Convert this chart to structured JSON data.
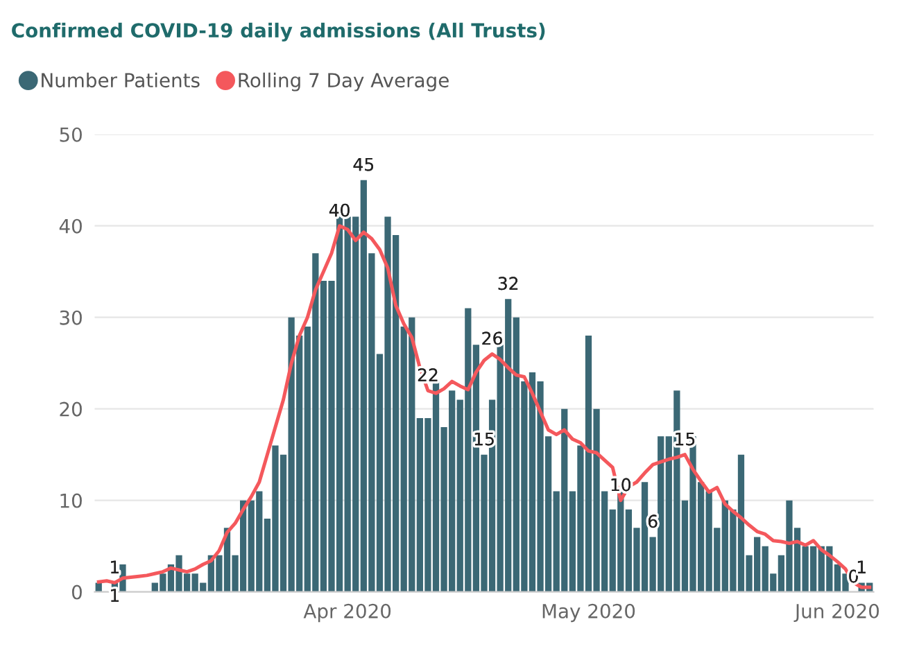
{
  "chart_data": {
    "type": "bar",
    "title": "Confirmed COVID-19 daily admissions (All Trusts)",
    "x": [
      "2020-03-01",
      "2020-03-02",
      "2020-03-03",
      "2020-03-04",
      "2020-03-05",
      "2020-03-06",
      "2020-03-07",
      "2020-03-08",
      "2020-03-09",
      "2020-03-10",
      "2020-03-11",
      "2020-03-12",
      "2020-03-13",
      "2020-03-14",
      "2020-03-15",
      "2020-03-16",
      "2020-03-17",
      "2020-03-18",
      "2020-03-19",
      "2020-03-20",
      "2020-03-21",
      "2020-03-22",
      "2020-03-23",
      "2020-03-24",
      "2020-03-25",
      "2020-03-26",
      "2020-03-27",
      "2020-03-28",
      "2020-03-29",
      "2020-03-30",
      "2020-03-31",
      "2020-04-01",
      "2020-04-02",
      "2020-04-03",
      "2020-04-04",
      "2020-04-05",
      "2020-04-06",
      "2020-04-07",
      "2020-04-08",
      "2020-04-09",
      "2020-04-10",
      "2020-04-11",
      "2020-04-12",
      "2020-04-13",
      "2020-04-14",
      "2020-04-15",
      "2020-04-16",
      "2020-04-17",
      "2020-04-18",
      "2020-04-19",
      "2020-04-20",
      "2020-04-21",
      "2020-04-22",
      "2020-04-23",
      "2020-04-24",
      "2020-04-25",
      "2020-04-26",
      "2020-04-27",
      "2020-04-28",
      "2020-04-29",
      "2020-04-30",
      "2020-05-01",
      "2020-05-02",
      "2020-05-03",
      "2020-05-04",
      "2020-05-05",
      "2020-05-06",
      "2020-05-07",
      "2020-05-08",
      "2020-05-09",
      "2020-05-10",
      "2020-05-11",
      "2020-05-12",
      "2020-05-13",
      "2020-05-14",
      "2020-05-15",
      "2020-05-16",
      "2020-05-17",
      "2020-05-18",
      "2020-05-19",
      "2020-05-20",
      "2020-05-21",
      "2020-05-22",
      "2020-05-23",
      "2020-05-24",
      "2020-05-25",
      "2020-05-26",
      "2020-05-27",
      "2020-05-28",
      "2020-05-29",
      "2020-05-30",
      "2020-05-31",
      "2020-06-01",
      "2020-06-02",
      "2020-06-03",
      "2020-06-04",
      "2020-06-05"
    ],
    "series": [
      {
        "name": "Number Patients",
        "type": "bar",
        "color": "#3b6875",
        "values": [
          1,
          0,
          1,
          3,
          0,
          0,
          0,
          1,
          2,
          3,
          4,
          2,
          2,
          1,
          4,
          4,
          7,
          4,
          10,
          10,
          11,
          8,
          16,
          15,
          30,
          28,
          29,
          37,
          34,
          34,
          41,
          41,
          41,
          45,
          37,
          26,
          41,
          39,
          29,
          30,
          19,
          19,
          23,
          18,
          22,
          21,
          31,
          27,
          15,
          21,
          27,
          32,
          30,
          23,
          24,
          23,
          17,
          11,
          20,
          11,
          16,
          28,
          20,
          11,
          9,
          11,
          9,
          7,
          12,
          6,
          17,
          17,
          22,
          10,
          17,
          12,
          11,
          7,
          10,
          9,
          15,
          4,
          6,
          5,
          2,
          4,
          10,
          7,
          5,
          5,
          5,
          5,
          3,
          2,
          0,
          1,
          1
        ],
        "value_labels": [
          null,
          null,
          "1",
          null,
          null,
          null,
          null,
          null,
          null,
          null,
          null,
          null,
          null,
          null,
          null,
          null,
          null,
          null,
          null,
          null,
          null,
          null,
          null,
          null,
          null,
          null,
          null,
          null,
          null,
          null,
          null,
          null,
          null,
          "45",
          null,
          null,
          null,
          null,
          null,
          null,
          null,
          null,
          null,
          null,
          null,
          null,
          null,
          null,
          "15",
          null,
          null,
          "32",
          null,
          null,
          null,
          null,
          null,
          null,
          null,
          null,
          null,
          null,
          null,
          null,
          null,
          null,
          null,
          null,
          null,
          "6",
          null,
          null,
          null,
          null,
          null,
          null,
          null,
          null,
          null,
          null,
          null,
          null,
          null,
          null,
          null,
          null,
          null,
          null,
          null,
          null,
          null,
          null,
          null,
          null,
          "0",
          "1",
          null
        ]
      },
      {
        "name": "Rolling 7 Day Average",
        "type": "line",
        "color": "#f4585c",
        "values": [
          1.1,
          1.2,
          1,
          1.5,
          1.6,
          1.7,
          1.8,
          2,
          2.2,
          2.6,
          2.4,
          2.2,
          2.5,
          3,
          3.4,
          4.5,
          6.5,
          7.5,
          9,
          10.4,
          12,
          15,
          18,
          21,
          25,
          28,
          30,
          33,
          35,
          37,
          40,
          39.6,
          38.4,
          39.3,
          38.6,
          37.4,
          35.4,
          31.3,
          29.3,
          27.8,
          24.5,
          22,
          21.7,
          22.2,
          23,
          22.5,
          22.1,
          24,
          25.3,
          26,
          25.4,
          24.5,
          23.7,
          23.5,
          21.7,
          19.7,
          17.7,
          17.2,
          17.7,
          16.7,
          16.3,
          15.4,
          15.2,
          14.4,
          13.6,
          10,
          11.5,
          12,
          13,
          13.9,
          14.2,
          14.5,
          14.7,
          15,
          13.4,
          12.1,
          10.9,
          11.4,
          9.6,
          8.8,
          8.1,
          7.3,
          6.6,
          6.3,
          5.6,
          5.5,
          5.3,
          5.5,
          5.1,
          5.6,
          4.6,
          4,
          3.3,
          2.5,
          1,
          0.5,
          0.5
        ],
        "value_labels": [
          null,
          null,
          "1",
          null,
          null,
          null,
          null,
          null,
          null,
          null,
          null,
          null,
          null,
          null,
          null,
          null,
          null,
          null,
          null,
          null,
          null,
          null,
          null,
          null,
          null,
          null,
          null,
          null,
          null,
          null,
          "40",
          null,
          null,
          null,
          null,
          null,
          null,
          null,
          null,
          null,
          null,
          "22",
          null,
          null,
          null,
          null,
          null,
          null,
          null,
          "26",
          null,
          null,
          null,
          null,
          null,
          null,
          null,
          null,
          null,
          null,
          null,
          null,
          null,
          null,
          null,
          "10",
          null,
          null,
          null,
          null,
          null,
          null,
          null,
          "15",
          null,
          null,
          null,
          null,
          null,
          null,
          null,
          null,
          null,
          null,
          null,
          null,
          null,
          null,
          null,
          null,
          null,
          null,
          null,
          null,
          null,
          null,
          null
        ]
      }
    ],
    "xlim": [
      "2020-02-29T12:00",
      "2020-06-05T12:00"
    ],
    "xticks": [
      {
        "value": "2020-04-01",
        "label": "Apr 2020"
      },
      {
        "value": "2020-05-01",
        "label": "May 2020"
      },
      {
        "value": "2020-06-01",
        "label": "Jun 2020"
      }
    ],
    "ylim": [
      0,
      50
    ],
    "yticks": [
      0,
      10,
      20,
      30,
      40,
      50
    ],
    "grid": "y",
    "legend": "top left"
  }
}
